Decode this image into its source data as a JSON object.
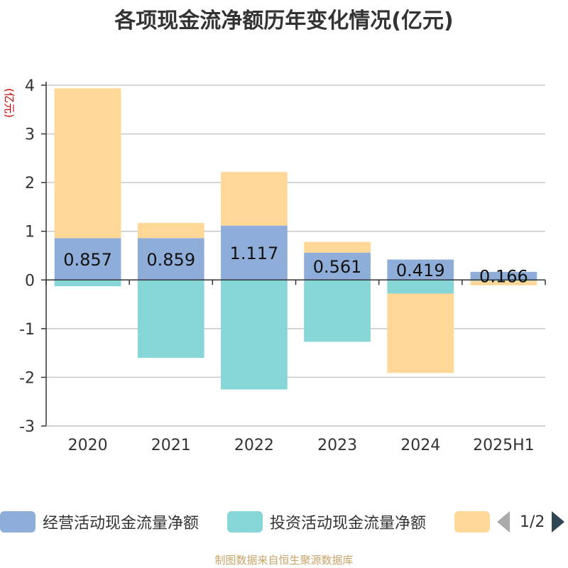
{
  "title": "各项现金流净额历年变化情况(亿元)",
  "chart_data": {
    "type": "bar",
    "stacked": true,
    "title": "各项现金流净额历年变化情况(亿元)",
    "ylabel": "(亿元)",
    "ylim": [
      -3,
      4
    ],
    "yticks": [
      -3,
      -2,
      -1,
      0,
      1,
      2,
      3,
      4
    ],
    "grid": true,
    "categories": [
      "2020",
      "2021",
      "2022",
      "2023",
      "2024",
      "2025H1"
    ],
    "series": [
      {
        "name": "经营活动现金流量净额",
        "color": "#8fadd9",
        "values": [
          0.857,
          0.859,
          1.117,
          0.561,
          0.419,
          0.166
        ],
        "labels": [
          "0.857",
          "0.859",
          "1.117",
          "0.561",
          "0.419",
          "0.166"
        ]
      },
      {
        "name": "投资活动现金流量净额",
        "color": "#86d6d8",
        "values": [
          -0.13,
          -1.6,
          -2.25,
          -1.27,
          -0.28,
          -0.02
        ]
      },
      {
        "name": "",
        "color": "#ffd897",
        "values": [
          3.08,
          0.31,
          1.1,
          0.22,
          -1.63,
          -0.09
        ]
      }
    ],
    "legend_position": "bottom"
  },
  "legend": {
    "items": [
      {
        "label": "经营活动现金流量净额",
        "color": "#8fadd9"
      },
      {
        "label": "投资活动现金流量净额",
        "color": "#86d6d8"
      },
      {
        "label": "",
        "color": "#ffd897"
      }
    ],
    "page": "1/2"
  },
  "source": "制图数据来自恒生聚源数据库"
}
